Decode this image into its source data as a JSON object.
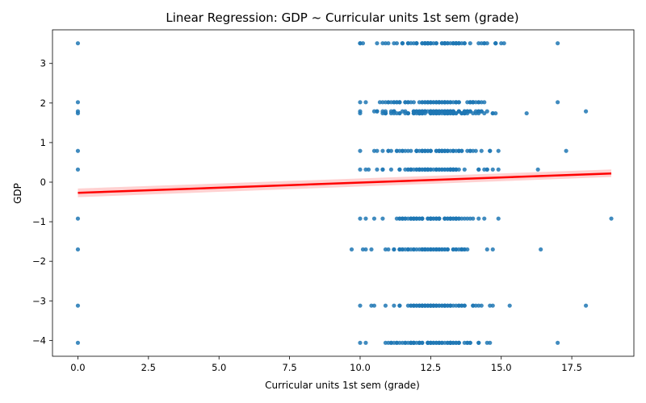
{
  "chart_data": {
    "type": "scatter",
    "title": "Linear Regression: GDP ~ Curricular units 1st sem (grade)",
    "xlabel": "Curricular units 1st sem (grade)",
    "ylabel": "GDP",
    "xlim": [
      -0.9,
      19.7
    ],
    "ylim": [
      -4.4,
      3.85
    ],
    "xticks": [
      0.0,
      2.5,
      5.0,
      7.5,
      10.0,
      12.5,
      15.0,
      17.5
    ],
    "xtick_labels": [
      "0.0",
      "2.5",
      "5.0",
      "7.5",
      "10.0",
      "12.5",
      "15.0",
      "17.5"
    ],
    "yticks": [
      -4,
      -3,
      -2,
      -1,
      0,
      1,
      2,
      3
    ],
    "ytick_labels": [
      "−4",
      "−3",
      "−2",
      "−1",
      "0",
      "1",
      "2",
      "3"
    ],
    "grid": false,
    "colors": {
      "points": "#1f77b4",
      "regression_line": "#ff0000",
      "confidence_band": "#ff9999"
    },
    "series": [
      {
        "kind": "points",
        "rows": [
          {
            "y": 3.51,
            "x0": 0.0,
            "x_min": 10.0,
            "x_max": 17.0
          },
          {
            "y": 2.02,
            "x0": 0.0,
            "x_min": 10.0,
            "x_max": 17.0
          },
          {
            "y": 1.79,
            "x0": 0.0,
            "x_min": 10.0,
            "x_max": 18.0
          },
          {
            "y": 1.74,
            "x0": 0.0,
            "x_min": 10.0,
            "x_max": 15.9
          },
          {
            "y": 0.79,
            "x0": 0.0,
            "x_min": 10.0,
            "x_max": 17.3
          },
          {
            "y": 0.32,
            "x0": 0.0,
            "x_min": 10.0,
            "x_max": 16.3
          },
          {
            "y": -0.92,
            "x0": 0.0,
            "x_min": 10.0,
            "x_max": 18.9
          },
          {
            "y": -1.7,
            "x0": 0.0,
            "x_min": 9.7,
            "x_max": 16.4
          },
          {
            "y": -3.12,
            "x0": 0.0,
            "x_min": 10.0,
            "x_max": 18.0
          },
          {
            "y": -4.06,
            "x0": 0.0,
            "x_min": 10.0,
            "x_max": 17.0
          }
        ]
      },
      {
        "kind": "regression_line",
        "x": [
          0.0,
          18.9
        ],
        "y": [
          -0.27,
          0.22
        ],
        "ci_low": [
          -0.38,
          0.13
        ],
        "ci_high": [
          -0.16,
          0.32
        ]
      }
    ]
  }
}
